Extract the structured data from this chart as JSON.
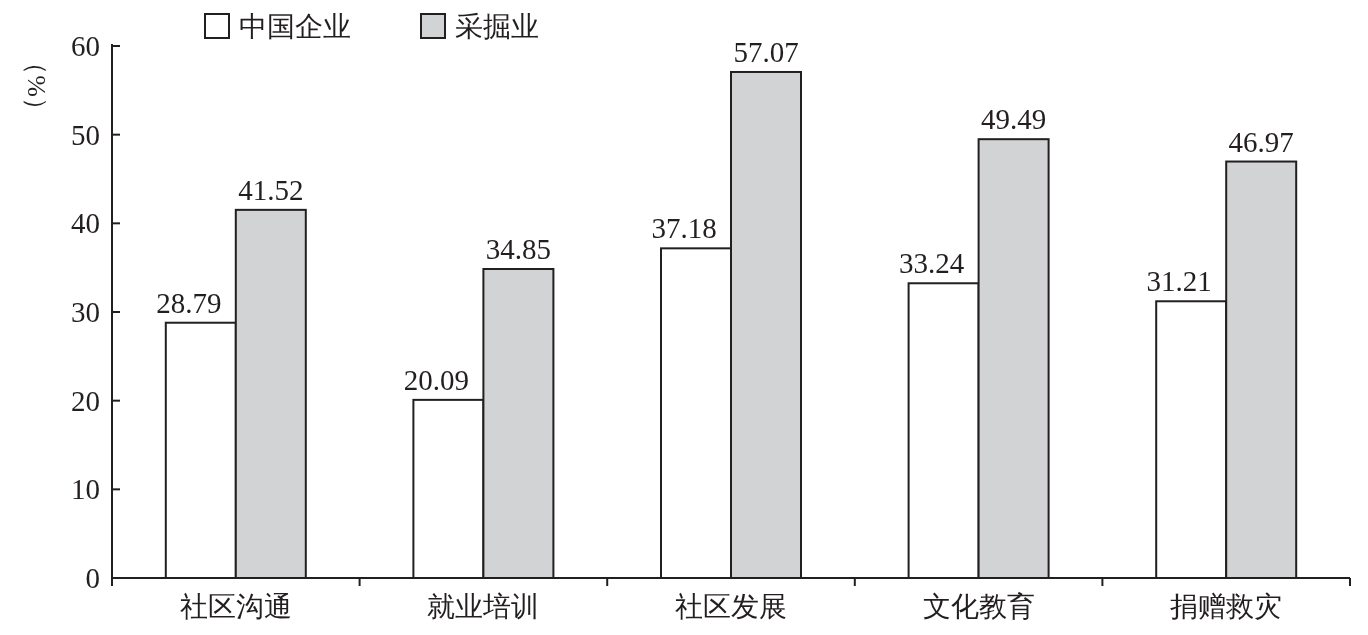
{
  "chart_data": {
    "type": "bar",
    "ylabel": "（%）",
    "categories": [
      "社区沟通",
      "就业培训",
      "社区发展",
      "文化教育",
      "捐赠救灾"
    ],
    "series": [
      {
        "name": "中国企业",
        "color": "#ffffff",
        "values": [
          28.79,
          20.09,
          37.18,
          33.24,
          31.21
        ]
      },
      {
        "name": "采掘业",
        "color": "#d1d3d4",
        "values": [
          41.52,
          34.85,
          57.07,
          49.49,
          46.97
        ]
      }
    ],
    "ylim": [
      0,
      60
    ],
    "yticks": [
      0,
      10,
      20,
      30,
      40,
      50,
      60
    ],
    "data_labels": true,
    "legend": "top left"
  }
}
